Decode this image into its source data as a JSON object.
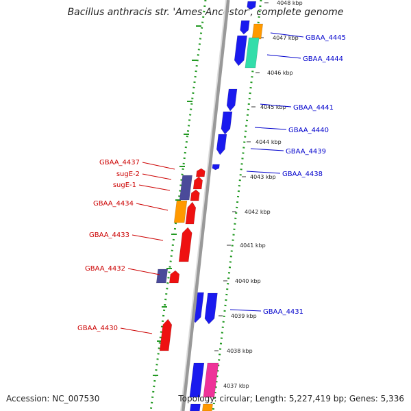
{
  "title": "Bacillus anthracis str. 'Ames Ancestor', complete genome",
  "footer": {
    "accession": "Accession: NC_007530",
    "topology": "Topology: circular; Length: 5,227,419 bp; Genes: 5,336"
  },
  "colors": {
    "forward_blue": "#1a1aee",
    "reverse_red": "#ee1111",
    "orange": "#ff9900",
    "green": "#33ddaa",
    "purple": "#4a4a9a",
    "magenta": "#ee3399",
    "label_blue": "#0000cc",
    "label_red": "#cc0000",
    "backbone": "#999999",
    "dots": "#229922"
  },
  "ticks": [
    "4048 kbp",
    "4047 kbp",
    "4046 kbp",
    "4045 kbp",
    "4044 kbp",
    "4043 kbp",
    "4042 kbp",
    "4041 kbp",
    "4040 kbp",
    "4039 kbp",
    "4038 kbp",
    "4037 kbp"
  ],
  "labels_right": [
    "GBAA_4445",
    "GBAA_4444",
    "GBAA_4441",
    "GBAA_4440",
    "GBAA_4439",
    "GBAA_4438",
    "GBAA_4431"
  ],
  "labels_left": [
    "GBAA_4437",
    "sugE-2",
    "sugE-1",
    "GBAA_4434",
    "GBAA_4433",
    "GBAA_4432",
    "GBAA_4430"
  ]
}
